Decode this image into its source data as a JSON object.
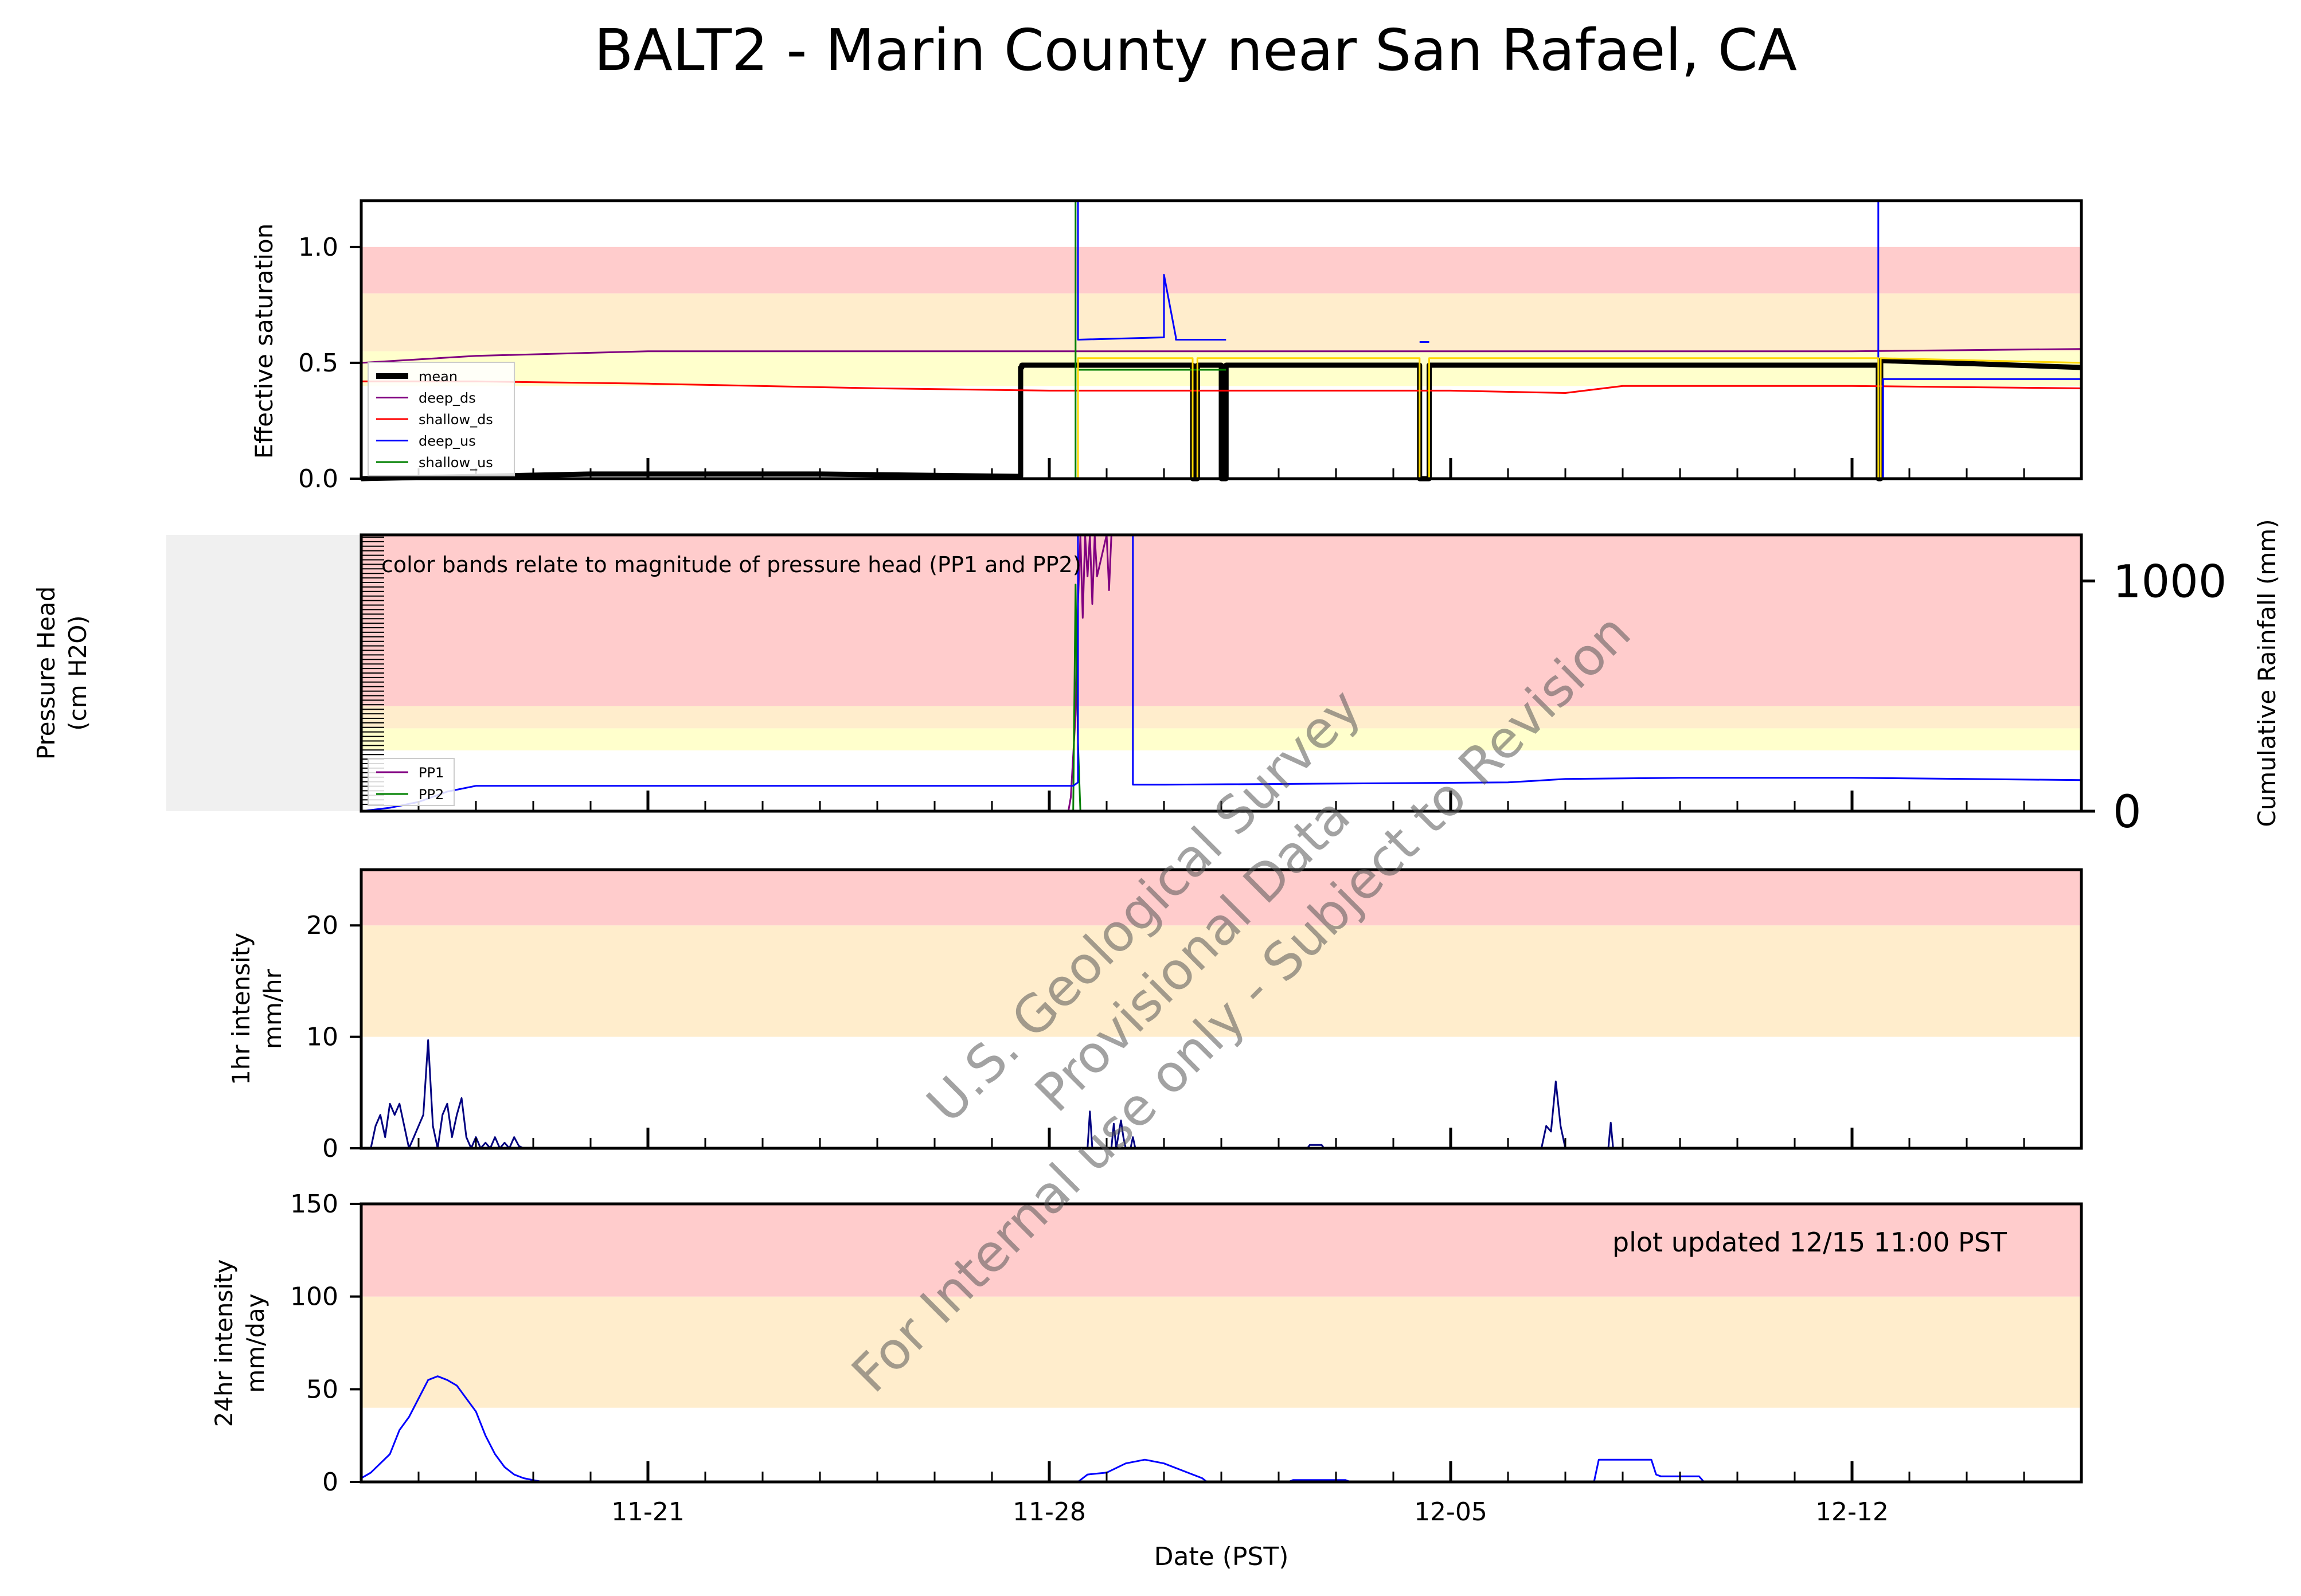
{
  "figure": {
    "title": "BALT2 - Marin County near San Rafael, CA",
    "xlabel": "Date (PST)",
    "updated_note": "plot updated 12/15 11:00  PST",
    "watermark": [
      "U.S. Geological Survey",
      "Provisional Data",
      "For Internal use only - Subject to Revision"
    ],
    "x_range": [
      "2023-11-16T00:00",
      "2023-12-16T00:00"
    ],
    "x_ticks": [
      {
        "date": "2023-11-21",
        "label": "11-21"
      },
      {
        "date": "2023-11-28",
        "label": "11-28"
      },
      {
        "date": "2023-12-05",
        "label": "12-05"
      },
      {
        "date": "2023-12-12",
        "label": "12-12"
      }
    ]
  },
  "chart_data": [
    {
      "type": "line",
      "panel": "saturation",
      "ylabel": "Effective saturation",
      "ylim": [
        0,
        1.2
      ],
      "yticks": [
        {
          "v": 0,
          "label": "0.0"
        },
        {
          "v": 0.5,
          "label": "0.5"
        },
        {
          "v": 1.0,
          "label": "1.0"
        }
      ],
      "bands": [
        {
          "from": 0.4,
          "to": 0.55,
          "color": "#ffffcc"
        },
        {
          "from": 0.55,
          "to": 0.8,
          "color": "#ffedcc"
        },
        {
          "from": 0.8,
          "to": 1.0,
          "color": "#ffcccc"
        }
      ],
      "legend": "lower-left",
      "series": [
        {
          "name": "mean",
          "color": "#000000",
          "width": 9,
          "x": [
            "2023-11-16",
            "2023-11-20",
            "2023-11-24",
            "2023-11-27T12:00",
            "2023-11-27T12:00",
            "2023-11-27T12:30",
            "2023-11-27T12:30",
            "2023-11-29",
            "2023-11-30T12:00",
            "2023-11-30T12:00",
            "2023-11-30T14:00",
            "2023-11-30T14:00",
            "2023-12-01T00:00",
            "2023-12-01T00:00",
            "2023-12-01T02:00",
            "2023-12-01T02:00",
            "2023-12-04T11:00",
            "2023-12-04T11:00",
            "2023-12-04T15:00",
            "2023-12-04T15:00",
            "2023-12-12T11:00",
            "2023-12-12T11:00",
            "2023-12-12T12:00",
            "2023-12-12T12:00",
            "2023-12-16"
          ],
          "y": [
            0.0,
            0.02,
            0.02,
            0.01,
            0.48,
            0.48,
            0.49,
            0.49,
            0.49,
            0.0,
            0.0,
            0.49,
            0.49,
            0.0,
            0.0,
            0.49,
            0.49,
            0.0,
            0.0,
            0.49,
            0.49,
            0.0,
            0.0,
            0.51,
            0.48
          ]
        },
        {
          "name": "deep_ds",
          "color": "#800080",
          "width": 3,
          "x": [
            "2023-11-16",
            "2023-11-18",
            "2023-11-21",
            "2023-11-28",
            "2023-12-06",
            "2023-12-12",
            "2023-12-16"
          ],
          "y": [
            0.5,
            0.53,
            0.55,
            0.55,
            0.55,
            0.55,
            0.56
          ]
        },
        {
          "name": "shallow_ds",
          "color": "#ff0000",
          "width": 3,
          "x": [
            "2023-11-16",
            "2023-11-18",
            "2023-11-21",
            "2023-11-25",
            "2023-11-28",
            "2023-12-01",
            "2023-12-05",
            "2023-12-07",
            "2023-12-08",
            "2023-12-12",
            "2023-12-16"
          ],
          "y": [
            0.42,
            0.42,
            0.41,
            0.39,
            0.38,
            0.38,
            0.38,
            0.37,
            0.4,
            0.4,
            0.39
          ]
        },
        {
          "name": "deep_us",
          "color": "#0000ff",
          "width": 3,
          "x": [
            "2023-11-28T11:00",
            "2023-11-28T11:00",
            "2023-11-28T12:00",
            "2023-11-28T12:00",
            "2023-11-30",
            "2023-11-30",
            "2023-11-30T05:00",
            "2023-11-30T05:00",
            "2023-12-01T02:00",
            "2023-12-01T02:00",
            "2023-12-04T11:00",
            "2023-12-04T11:00",
            "2023-12-04T15:00",
            "2023-12-04T15:00",
            "2023-12-12T10:00",
            "2023-12-12T10:00",
            "2023-12-12T11:00",
            "2023-12-12T11:00",
            "2023-12-12T13:00",
            "2023-12-12T13:00",
            "2023-12-16"
          ],
          "y": [
            null,
            1.2,
            1.2,
            0.6,
            0.61,
            0.88,
            0.61,
            0.6,
            0.6,
            null,
            null,
            0.59,
            0.59,
            null,
            null,
            1.2,
            1.2,
            0.0,
            0.0,
            0.43,
            0.43
          ]
        },
        {
          "name": "shallow_us",
          "color": "#008000",
          "width": 3,
          "x": [
            "2023-11-28T10:00",
            "2023-11-28T10:00",
            "2023-11-28T11:00",
            "2023-11-28T11:00",
            "2023-11-28T12:00",
            "2023-11-28T12:00",
            "2023-11-29",
            "2023-12-01T02:00"
          ],
          "y": [
            null,
            1.2,
            1.2,
            0.0,
            0.0,
            0.47,
            0.47,
            0.47
          ]
        },
        {
          "name": "",
          "color": "#ffd700",
          "width": 3,
          "x": [
            "2023-11-28T12:00",
            "2023-11-28T12:00",
            "2023-11-30T12:00",
            "2023-11-30T12:00",
            "2023-11-30T14:00",
            "2023-11-30T14:00",
            "2023-12-01T02:00",
            "2023-12-04T11:00",
            "2023-12-04T11:00",
            "2023-12-04T15:00",
            "2023-12-04T15:00",
            "2023-12-12T11:00",
            "2023-12-12T11:00",
            "2023-12-12T12:00",
            "2023-12-12T12:00",
            "2023-12-16"
          ],
          "y": [
            0.0,
            0.52,
            0.52,
            0.0,
            0.0,
            0.52,
            0.52,
            0.52,
            0.0,
            0.0,
            0.52,
            0.52,
            0.0,
            0.0,
            0.52,
            0.5
          ]
        }
      ]
    },
    {
      "type": "line",
      "panel": "pressure",
      "ylabel": [
        "Pressure Head",
        "(cm H2O)"
      ],
      "ylabel_right": "Cumulative Rainfall (mm)",
      "ylim": [
        0,
        1
      ],
      "ylim_right": [
        0,
        1200
      ],
      "yticks_right": [
        {
          "v": 0,
          "label": "0"
        },
        {
          "v": 1000,
          "label": "1000"
        }
      ],
      "annotation": "color bands relate to magnitude of pressure head (PP1 and PP2)",
      "bands": [
        {
          "from": 0.22,
          "to": 0.3,
          "color": "#ffffcc"
        },
        {
          "from": 0.3,
          "to": 0.38,
          "color": "#ffedcc"
        },
        {
          "from": 0.38,
          "to": 1.0,
          "color": "#ffcccc"
        }
      ],
      "legend": "lower-left",
      "series": [
        {
          "name": "PP1",
          "color": "#800080",
          "width": 3,
          "x": [
            "2023-11-16",
            "2023-11-28T08:00",
            "2023-11-28T09:00",
            "2023-11-28T11:00",
            "2023-11-28T12:00",
            "2023-11-28T13:00",
            "2023-11-28T14:00",
            "2023-11-28T15:00",
            "2023-11-28T16:00",
            "2023-11-28T17:00",
            "2023-11-28T18:00",
            "2023-11-28T19:00",
            "2023-11-28T20:00",
            "2023-11-29T00:00",
            "2023-11-29T01:00",
            "2023-11-29T02:00"
          ],
          "y": [
            0.0,
            0.0,
            0.05,
            0.35,
            0.75,
            1.0,
            0.7,
            1.0,
            0.85,
            1.0,
            0.75,
            1.0,
            0.85,
            1.0,
            0.8,
            1.0
          ]
        },
        {
          "name": "PP2",
          "color": "#008000",
          "width": 3,
          "x": [
            "2023-11-28T10:00",
            "2023-11-28T11:00",
            "2023-11-28T12:00",
            "2023-11-28T13:00"
          ],
          "y": [
            0.0,
            0.82,
            0.25,
            0.0
          ]
        },
        {
          "name": "",
          "axis": "right",
          "color": "#0000ff",
          "width": 3,
          "x": [
            "2023-11-16",
            "2023-11-16T12:00",
            "2023-11-17",
            "2023-11-17T12:00",
            "2023-11-18",
            "2023-11-28T10:00",
            "2023-11-28T12:00",
            "2023-11-28T12:00",
            "2023-11-29T11:00",
            "2023-11-29T11:00",
            "2023-11-30",
            "2023-12-06",
            "2023-12-07",
            "2023-12-09",
            "2023-12-12",
            "2023-12-16"
          ],
          "y": [
            0,
            15,
            40,
            85,
            110,
            110,
            125,
            1200,
            1200,
            115,
            115,
            125,
            140,
            145,
            145,
            135
          ]
        }
      ]
    },
    {
      "type": "line",
      "panel": "intensity_1hr",
      "ylabel": [
        "1hr intensity",
        "mm/hr"
      ],
      "ylim": [
        0,
        25
      ],
      "yticks": [
        {
          "v": 0,
          "label": "0"
        },
        {
          "v": 10,
          "label": "10"
        },
        {
          "v": 20,
          "label": "20"
        }
      ],
      "bands": [
        {
          "from": 10,
          "to": 20,
          "color": "#ffedcc"
        },
        {
          "from": 20,
          "to": 25,
          "color": "#ffcccc"
        }
      ],
      "series": [
        {
          "name": "",
          "color": "#000080",
          "width": 3,
          "x": [
            "2023-11-16T04:00",
            "2023-11-16T06:00",
            "2023-11-16T08:00",
            "2023-11-16T10:00",
            "2023-11-16T12:00",
            "2023-11-16T14:00",
            "2023-11-16T16:00",
            "2023-11-16T18:00",
            "2023-11-16T20:00",
            "2023-11-16T22:00",
            "2023-11-17T00:00",
            "2023-11-17T02:00",
            "2023-11-17T04:00",
            "2023-11-17T06:00",
            "2023-11-17T08:00",
            "2023-11-17T10:00",
            "2023-11-17T12:00",
            "2023-11-17T14:00",
            "2023-11-17T16:00",
            "2023-11-17T18:00",
            "2023-11-17T20:00",
            "2023-11-17T22:00",
            "2023-11-18T00:00",
            "2023-11-18T02:00",
            "2023-11-18T04:00",
            "2023-11-18T06:00",
            "2023-11-18T08:00",
            "2023-11-18T10:00",
            "2023-11-18T12:00",
            "2023-11-18T14:00",
            "2023-11-18T16:00",
            "2023-11-18T18:00",
            "2023-11-18T20:00",
            "2023-11-28T16:00",
            "2023-11-28T17:00",
            "2023-11-28T18:00",
            "2023-11-29T02:00",
            "2023-11-29T03:00",
            "2023-11-29T04:00",
            "2023-11-29T06:00",
            "2023-11-29T07:00",
            "2023-11-29T08:00",
            "2023-11-29T10:00",
            "2023-11-29T11:00",
            "2023-11-29T12:00",
            "2023-12-02T12:00",
            "2023-12-02T13:00",
            "2023-12-02T18:00",
            "2023-12-02T19:00",
            "2023-12-06T14:00",
            "2023-12-06T16:00",
            "2023-12-06T18:00",
            "2023-12-06T20:00",
            "2023-12-06T22:00",
            "2023-12-07T00:00",
            "2023-12-07T02:00",
            "2023-12-07T04:00",
            "2023-12-07T18:00",
            "2023-12-07T19:00",
            "2023-12-07T20:00"
          ],
          "y": [
            0,
            2,
            3,
            1,
            4,
            3,
            4,
            2,
            0,
            1,
            2,
            3,
            9.7,
            2,
            0,
            3,
            4,
            1,
            3,
            4.5,
            1,
            0,
            1,
            0,
            0.5,
            0,
            1,
            0,
            0.5,
            0,
            1,
            0.2,
            0,
            0,
            3.3,
            0,
            0,
            2.2,
            0,
            2.5,
            1,
            0,
            0,
            1,
            0,
            0,
            0.3,
            0.3,
            0,
            0,
            2,
            1.5,
            6,
            2,
            0,
            0,
            0,
            0,
            2.3,
            0
          ]
        }
      ]
    },
    {
      "type": "area",
      "panel": "intensity_24hr",
      "ylabel": [
        "24hr intensity",
        "mm/day"
      ],
      "ylim": [
        0,
        150
      ],
      "yticks": [
        {
          "v": 0,
          "label": "0"
        },
        {
          "v": 50,
          "label": "50"
        },
        {
          "v": 100,
          "label": "100"
        },
        {
          "v": 150,
          "label": "150"
        }
      ],
      "bands": [
        {
          "from": 40,
          "to": 100,
          "color": "#ffedcc"
        },
        {
          "from": 100,
          "to": 150,
          "color": "#ffcccc"
        }
      ],
      "series": [
        {
          "name": "",
          "color": "#0000ff",
          "width": 3,
          "x": [
            "2023-11-16",
            "2023-11-16T04:00",
            "2023-11-16T08:00",
            "2023-11-16T12:00",
            "2023-11-16T16:00",
            "2023-11-16T20:00",
            "2023-11-17T00:00",
            "2023-11-17T04:00",
            "2023-11-17T08:00",
            "2023-11-17T12:00",
            "2023-11-17T16:00",
            "2023-11-17T20:00",
            "2023-11-18T00:00",
            "2023-11-18T04:00",
            "2023-11-18T08:00",
            "2023-11-18T12:00",
            "2023-11-18T16:00",
            "2023-11-18T20:00",
            "2023-11-19T00:00",
            "2023-11-19T04:00",
            "2023-11-19T12:00",
            "2023-11-19T20:00",
            "2023-11-28T12:00",
            "2023-11-28T16:00",
            "2023-11-29",
            "2023-11-29T08:00",
            "2023-11-29T16:00",
            "2023-11-30T00:00",
            "2023-11-30T08:00",
            "2023-11-30T16:00",
            "2023-11-30T18:00",
            "2023-12-02T04:00",
            "2023-12-02T06:00",
            "2023-12-03T04:00",
            "2023-12-03T06:00",
            "2023-12-07T12:00",
            "2023-12-07T14:00",
            "2023-12-07T18:00",
            "2023-12-08T12:00",
            "2023-12-08T14:00",
            "2023-12-08T16:00",
            "2023-12-09T08:00",
            "2023-12-09T10:00"
          ],
          "y": [
            2,
            5,
            10,
            15,
            28,
            35,
            45,
            55,
            57,
            55,
            52,
            45,
            38,
            25,
            15,
            8,
            4,
            2,
            1,
            0,
            0,
            0,
            0,
            4,
            5,
            10,
            12,
            10,
            6,
            2,
            0,
            0,
            1,
            1,
            0,
            0,
            12,
            12,
            12,
            4,
            3,
            3,
            0
          ]
        }
      ]
    }
  ]
}
